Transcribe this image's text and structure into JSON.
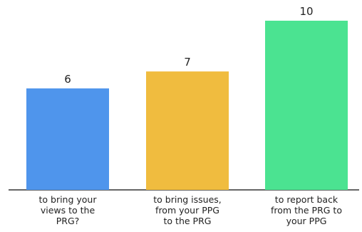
{
  "chart_data": {
    "type": "bar",
    "categories": [
      [
        "to bring your",
        "views to the",
        "PRG?"
      ],
      [
        "to bring issues,",
        "from your PPG",
        "to the PRG"
      ],
      [
        "to report back",
        "from the PRG to",
        "your PPG"
      ]
    ],
    "values": [
      6,
      7,
      10
    ],
    "colors": [
      "#4f95ec",
      "#f0bc3f",
      "#4be391"
    ],
    "value_labels": [
      "6",
      "7",
      "10"
    ],
    "ylim": [
      0,
      10
    ],
    "grid": false,
    "legend": "none"
  }
}
